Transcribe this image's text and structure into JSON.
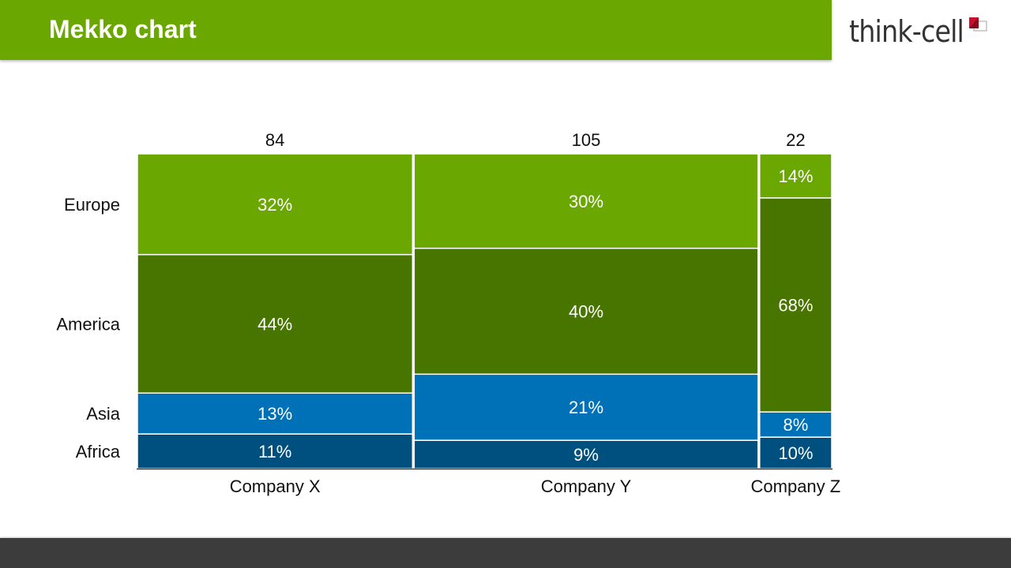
{
  "header": {
    "title": "Mekko chart",
    "logo_text": "think-cell"
  },
  "colors": {
    "title_bar": "#6aa700",
    "footer": "#3c3c3c",
    "segment_text": "#ffffff"
  },
  "chart_data": {
    "type": "mekko",
    "title": "Mekko chart",
    "categories": [
      "Company X",
      "Company Y",
      "Company Z"
    ],
    "totals": [
      84,
      105,
      22
    ],
    "series": [
      {
        "name": "Africa",
        "color": "#00507f",
        "values": [
          11,
          9,
          10
        ]
      },
      {
        "name": "Asia",
        "color": "#0071b6",
        "values": [
          13,
          21,
          8
        ]
      },
      {
        "name": "America",
        "color": "#487400",
        "values": [
          44,
          40,
          68
        ]
      },
      {
        "name": "Europe",
        "color": "#6aa700",
        "values": [
          32,
          30,
          14
        ]
      }
    ],
    "value_format": "percent"
  }
}
